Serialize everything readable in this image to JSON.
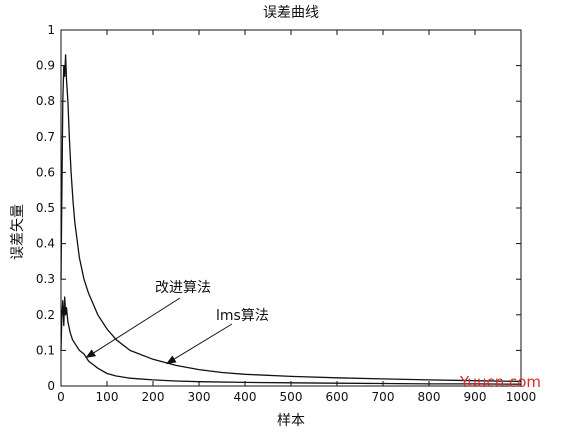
{
  "chart_data": {
    "type": "line",
    "title": "误差曲线",
    "xlabel": "样本",
    "ylabel": "误差矢量",
    "xlim": [
      0,
      1000
    ],
    "ylim": [
      0,
      1
    ],
    "xticks": [
      0,
      100,
      200,
      300,
      400,
      500,
      600,
      700,
      800,
      900,
      1000
    ],
    "yticks": [
      0,
      0.1,
      0.2,
      0.3,
      0.4,
      0.5,
      0.6,
      0.7,
      0.8,
      0.9,
      1
    ],
    "grid": false,
    "series": [
      {
        "name": "lms算法",
        "x": [
          0,
          2,
          4,
          6,
          8,
          10,
          12,
          15,
          18,
          22,
          26,
          30,
          40,
          50,
          60,
          80,
          100,
          120,
          150,
          200,
          250,
          300,
          350,
          400,
          500,
          600,
          700,
          800,
          900,
          1000
        ],
        "values": [
          0.3,
          0.55,
          0.8,
          0.9,
          0.87,
          0.93,
          0.86,
          0.8,
          0.7,
          0.6,
          0.52,
          0.46,
          0.36,
          0.3,
          0.26,
          0.2,
          0.16,
          0.13,
          0.1,
          0.075,
          0.058,
          0.046,
          0.038,
          0.033,
          0.027,
          0.023,
          0.02,
          0.017,
          0.015,
          0.013
        ]
      },
      {
        "name": "改进算法",
        "x": [
          0,
          2,
          4,
          6,
          8,
          10,
          12,
          15,
          20,
          25,
          30,
          40,
          50,
          60,
          80,
          100,
          120,
          150,
          200,
          250,
          300,
          400,
          500,
          600,
          700,
          800,
          900,
          1000
        ],
        "values": [
          0.1,
          0.2,
          0.24,
          0.17,
          0.25,
          0.2,
          0.22,
          0.18,
          0.15,
          0.13,
          0.12,
          0.1,
          0.09,
          0.07,
          0.05,
          0.035,
          0.028,
          0.022,
          0.017,
          0.014,
          0.012,
          0.01,
          0.009,
          0.008,
          0.007,
          0.006,
          0.006,
          0.005
        ]
      }
    ],
    "annotations": [
      {
        "text": "改进算法",
        "target_series": "改进算法",
        "x": 55,
        "y": 0.08
      },
      {
        "text": "lms算法",
        "target_series": "lms算法",
        "x": 230,
        "y": 0.063
      }
    ]
  },
  "watermark": "Yuucn.com",
  "colors": {
    "line": "#111111",
    "axis": "#111111",
    "watermark": "#d62e2e"
  }
}
